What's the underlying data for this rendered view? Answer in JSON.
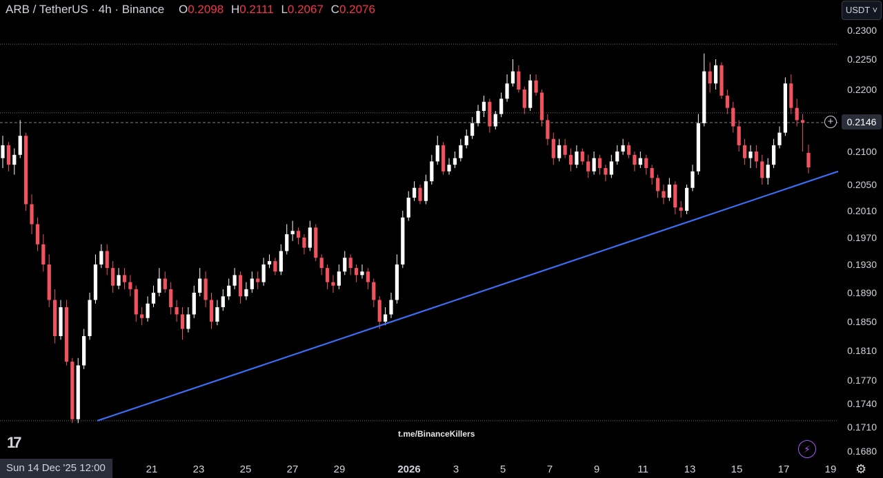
{
  "header": {
    "symbol": "ARB / TetherUS · 4h · Binance",
    "o_label": "O",
    "o_value": "0.2098",
    "h_label": "H",
    "h_value": "0.2111",
    "l_label": "L",
    "l_value": "0.2067",
    "c_label": "C",
    "c_value": "0.2076"
  },
  "currency_button": "USDT ˅",
  "current_price": "0.2146",
  "crosshair_date": "Sun 14 Dec '25   12:00",
  "watermark": "t.me/BinanceKillers",
  "logo_text": "17",
  "colors": {
    "up": "#ffffff",
    "down": "#f0525e",
    "trendline": "#3b6ef5",
    "accent": "#a855f7"
  },
  "chart_data": {
    "type": "candlestick",
    "price_ticks": [
      "0.2300",
      "0.2250",
      "0.2200",
      "0.2146",
      "0.2100",
      "0.2050",
      "0.2010",
      "0.1970",
      "0.1930",
      "0.1890",
      "0.1850",
      "0.1810",
      "0.1770",
      "0.1740",
      "0.1710",
      "0.1680"
    ],
    "time_ticks": [
      {
        "label": "21",
        "bold": false
      },
      {
        "label": "23",
        "bold": false
      },
      {
        "label": "25",
        "bold": false
      },
      {
        "label": "27",
        "bold": false
      },
      {
        "label": "29",
        "bold": false
      },
      {
        "label": "2026",
        "bold": true
      },
      {
        "label": "3",
        "bold": false
      },
      {
        "label": "5",
        "bold": false
      },
      {
        "label": "7",
        "bold": false
      },
      {
        "label": "9",
        "bold": false
      },
      {
        "label": "11",
        "bold": false
      },
      {
        "label": "13",
        "bold": false
      },
      {
        "label": "15",
        "bold": false
      },
      {
        "label": "17",
        "bold": false
      },
      {
        "label": "19",
        "bold": false
      }
    ],
    "horizontal_levels": [
      0.2276,
      0.2162,
      0.1718
    ],
    "trendline": {
      "start": [
        "2025-12-20",
        0.1718
      ],
      "end": [
        "2026-01-19",
        0.207
      ]
    },
    "current_price": 0.2146,
    "closes": [
      0.211,
      0.208,
      0.2095,
      0.2125,
      0.202,
      0.199,
      0.196,
      0.193,
      0.188,
      0.183,
      0.187,
      0.1795,
      0.172,
      0.179,
      0.183,
      0.188,
      0.193,
      0.195,
      0.1925,
      0.19,
      0.1915,
      0.1905,
      0.1895,
      0.186,
      0.1855,
      0.1875,
      0.189,
      0.191,
      0.1895,
      0.187,
      0.186,
      0.184,
      0.186,
      0.189,
      0.191,
      0.188,
      0.185,
      0.187,
      0.1885,
      0.19,
      0.1915,
      0.1885,
      0.1895,
      0.191,
      0.1905,
      0.193,
      0.1935,
      0.192,
      0.195,
      0.1975,
      0.198,
      0.197,
      0.1955,
      0.1985,
      0.194,
      0.1925,
      0.1905,
      0.19,
      0.192,
      0.194,
      0.1925,
      0.1915,
      0.192,
      0.1905,
      0.188,
      0.185,
      0.186,
      0.188,
      0.193,
      0.2,
      0.203,
      0.2045,
      0.2025,
      0.2055,
      0.2085,
      0.211,
      0.207,
      0.208,
      0.209,
      0.211,
      0.2125,
      0.2145,
      0.2165,
      0.218,
      0.214,
      0.216,
      0.2185,
      0.221,
      0.223,
      0.22,
      0.217,
      0.2215,
      0.2195,
      0.215,
      0.212,
      0.209,
      0.211,
      0.2095,
      0.208,
      0.21,
      0.2085,
      0.207,
      0.209,
      0.2075,
      0.2065,
      0.2085,
      0.21,
      0.211,
      0.2095,
      0.208,
      0.209,
      0.2075,
      0.206,
      0.204,
      0.203,
      0.205,
      0.2015,
      0.201,
      0.2045,
      0.207,
      0.2145,
      0.223,
      0.221,
      0.224,
      0.219,
      0.217,
      0.214,
      0.211,
      0.209,
      0.21,
      0.2085,
      0.206,
      0.208,
      0.211,
      0.213,
      0.221,
      0.217,
      0.215,
      0.2146,
      0.2076
    ],
    "opens": [
      0.209,
      0.211,
      0.208,
      0.2095,
      0.2125,
      0.202,
      0.199,
      0.196,
      0.193,
      0.188,
      0.183,
      0.187,
      0.1795,
      0.172,
      0.179,
      0.183,
      0.188,
      0.193,
      0.195,
      0.1925,
      0.19,
      0.1915,
      0.1905,
      0.1895,
      0.186,
      0.1855,
      0.1875,
      0.189,
      0.191,
      0.1895,
      0.187,
      0.186,
      0.184,
      0.186,
      0.189,
      0.191,
      0.188,
      0.185,
      0.187,
      0.1885,
      0.19,
      0.1915,
      0.1885,
      0.1895,
      0.191,
      0.1905,
      0.193,
      0.1935,
      0.192,
      0.195,
      0.1975,
      0.198,
      0.197,
      0.1955,
      0.1985,
      0.194,
      0.1925,
      0.1905,
      0.19,
      0.192,
      0.194,
      0.1925,
      0.1915,
      0.192,
      0.1905,
      0.188,
      0.185,
      0.186,
      0.188,
      0.193,
      0.2,
      0.203,
      0.2045,
      0.2025,
      0.2055,
      0.2085,
      0.211,
      0.207,
      0.208,
      0.209,
      0.211,
      0.2125,
      0.2145,
      0.2165,
      0.218,
      0.214,
      0.216,
      0.2185,
      0.221,
      0.223,
      0.22,
      0.217,
      0.2215,
      0.2195,
      0.215,
      0.212,
      0.209,
      0.211,
      0.2095,
      0.208,
      0.21,
      0.2085,
      0.207,
      0.209,
      0.2075,
      0.2065,
      0.2085,
      0.21,
      0.211,
      0.2095,
      0.208,
      0.209,
      0.2075,
      0.206,
      0.204,
      0.203,
      0.205,
      0.2015,
      0.201,
      0.2045,
      0.207,
      0.2145,
      0.223,
      0.221,
      0.224,
      0.219,
      0.217,
      0.214,
      0.211,
      0.209,
      0.21,
      0.2085,
      0.206,
      0.208,
      0.211,
      0.213,
      0.221,
      0.217,
      0.215,
      0.2098
    ],
    "highs": [
      0.2125,
      0.2115,
      0.2105,
      0.215,
      0.213,
      0.2035,
      0.2,
      0.1975,
      0.1945,
      0.1895,
      0.188,
      0.188,
      0.18,
      0.18,
      0.184,
      0.189,
      0.1945,
      0.196,
      0.196,
      0.1935,
      0.1925,
      0.1925,
      0.1915,
      0.19,
      0.187,
      0.1885,
      0.19,
      0.1925,
      0.192,
      0.1905,
      0.188,
      0.187,
      0.187,
      0.19,
      0.1925,
      0.192,
      0.189,
      0.188,
      0.1895,
      0.191,
      0.1925,
      0.192,
      0.1905,
      0.192,
      0.192,
      0.194,
      0.1945,
      0.194,
      0.196,
      0.199,
      0.1995,
      0.1985,
      0.1975,
      0.1995,
      0.199,
      0.1945,
      0.193,
      0.1915,
      0.193,
      0.195,
      0.1945,
      0.193,
      0.193,
      0.1925,
      0.191,
      0.1885,
      0.187,
      0.189,
      0.1945,
      0.201,
      0.204,
      0.2055,
      0.205,
      0.2065,
      0.2095,
      0.2125,
      0.2115,
      0.209,
      0.21,
      0.212,
      0.2135,
      0.2155,
      0.2175,
      0.219,
      0.2185,
      0.2165,
      0.2195,
      0.2225,
      0.225,
      0.224,
      0.2205,
      0.2225,
      0.2225,
      0.22,
      0.216,
      0.213,
      0.212,
      0.212,
      0.2105,
      0.211,
      0.2105,
      0.2095,
      0.21,
      0.2095,
      0.208,
      0.2095,
      0.211,
      0.212,
      0.2115,
      0.21,
      0.21,
      0.2095,
      0.208,
      0.2065,
      0.205,
      0.206,
      0.2055,
      0.2025,
      0.205,
      0.208,
      0.216,
      0.226,
      0.2245,
      0.225,
      0.2245,
      0.22,
      0.218,
      0.215,
      0.212,
      0.211,
      0.211,
      0.2095,
      0.209,
      0.212,
      0.214,
      0.222,
      0.2225,
      0.2185,
      0.216,
      0.2111
    ],
    "lows": [
      0.2075,
      0.207,
      0.2065,
      0.209,
      0.201,
      0.1975,
      0.195,
      0.192,
      0.187,
      0.182,
      0.1825,
      0.179,
      0.1715,
      0.1715,
      0.1785,
      0.1825,
      0.1875,
      0.1925,
      0.1915,
      0.189,
      0.1895,
      0.1895,
      0.1885,
      0.185,
      0.1845,
      0.185,
      0.187,
      0.1885,
      0.189,
      0.186,
      0.185,
      0.1825,
      0.1835,
      0.1855,
      0.1885,
      0.187,
      0.184,
      0.1845,
      0.1865,
      0.188,
      0.1895,
      0.1875,
      0.188,
      0.189,
      0.1895,
      0.19,
      0.1925,
      0.1915,
      0.1915,
      0.1945,
      0.1965,
      0.196,
      0.1945,
      0.195,
      0.1935,
      0.1915,
      0.1895,
      0.189,
      0.1895,
      0.1915,
      0.1915,
      0.1905,
      0.191,
      0.1895,
      0.187,
      0.184,
      0.1845,
      0.1855,
      0.1875,
      0.1925,
      0.1995,
      0.2025,
      0.202,
      0.202,
      0.205,
      0.208,
      0.2065,
      0.2065,
      0.2075,
      0.2085,
      0.2105,
      0.212,
      0.214,
      0.2155,
      0.213,
      0.2135,
      0.2155,
      0.218,
      0.2205,
      0.2195,
      0.216,
      0.2165,
      0.219,
      0.214,
      0.211,
      0.208,
      0.2085,
      0.209,
      0.207,
      0.2075,
      0.208,
      0.206,
      0.2065,
      0.2065,
      0.2055,
      0.206,
      0.208,
      0.2095,
      0.209,
      0.207,
      0.2075,
      0.2065,
      0.205,
      0.203,
      0.202,
      0.2025,
      0.2005,
      0.2,
      0.2005,
      0.204,
      0.2065,
      0.214,
      0.2195,
      0.22,
      0.2185,
      0.216,
      0.213,
      0.21,
      0.208,
      0.2075,
      0.2075,
      0.205,
      0.205,
      0.2075,
      0.2105,
      0.2125,
      0.216,
      0.214,
      0.21,
      0.2067
    ]
  }
}
